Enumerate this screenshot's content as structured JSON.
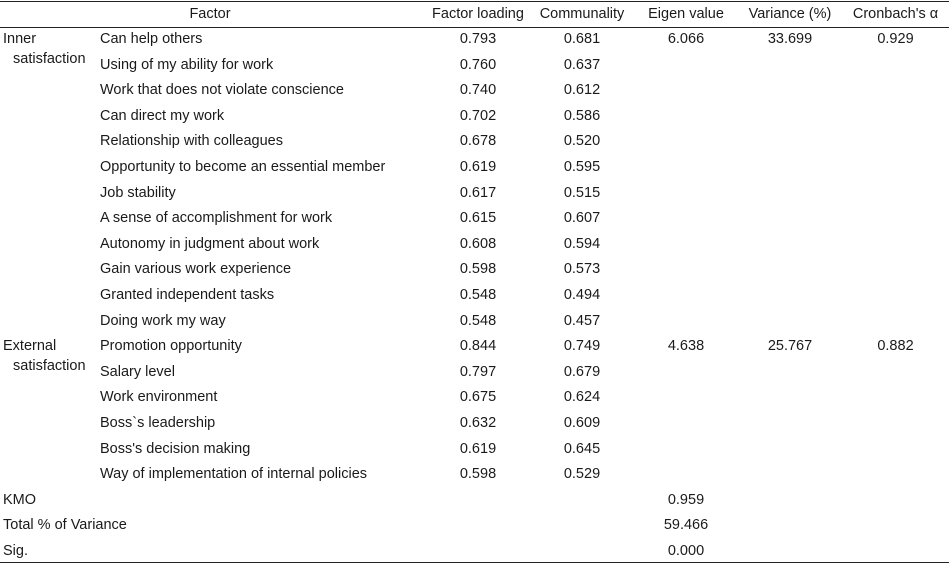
{
  "header": {
    "factor": "Factor",
    "loading": "Factor loading",
    "communality": "Communality",
    "eigen": "Eigen value",
    "variance": "Variance (%)",
    "alpha": "Cronbach's α"
  },
  "groups": [
    {
      "label_line1": "Inner",
      "label_line2": "satisfaction",
      "eigen": "6.066",
      "variance": "33.699",
      "alpha": "0.929",
      "items": [
        {
          "name": "Can help others",
          "loading": "0.793",
          "communality": "0.681"
        },
        {
          "name": "Using of my ability for work",
          "loading": "0.760",
          "communality": "0.637"
        },
        {
          "name": "Work that does not violate conscience",
          "loading": "0.740",
          "communality": "0.612"
        },
        {
          "name": "Can direct my work",
          "loading": "0.702",
          "communality": "0.586"
        },
        {
          "name": "Relationship with colleagues",
          "loading": "0.678",
          "communality": "0.520"
        },
        {
          "name": "Opportunity to become an essential member",
          "loading": "0.619",
          "communality": "0.595"
        },
        {
          "name": "Job stability",
          "loading": "0.617",
          "communality": "0.515"
        },
        {
          "name": "A sense of accomplishment for work",
          "loading": "0.615",
          "communality": "0.607"
        },
        {
          "name": "Autonomy in judgment about work",
          "loading": "0.608",
          "communality": "0.594"
        },
        {
          "name": "Gain various work experience",
          "loading": "0.598",
          "communality": "0.573"
        },
        {
          "name": "Granted independent tasks",
          "loading": "0.548",
          "communality": "0.494"
        },
        {
          "name": "Doing work my way",
          "loading": "0.548",
          "communality": "0.457"
        }
      ]
    },
    {
      "label_line1": "External",
      "label_line2": "satisfaction",
      "eigen": "4.638",
      "variance": "25.767",
      "alpha": "0.882",
      "items": [
        {
          "name": "Promotion opportunity",
          "loading": "0.844",
          "communality": "0.749"
        },
        {
          "name": "Salary level",
          "loading": "0.797",
          "communality": "0.679"
        },
        {
          "name": "Work environment",
          "loading": "0.675",
          "communality": "0.624"
        },
        {
          "name": "Boss`s leadership",
          "loading": "0.632",
          "communality": "0.609"
        },
        {
          "name": "Boss's decision making",
          "loading": "0.619",
          "communality": "0.645"
        },
        {
          "name": "Way of implementation of internal policies",
          "loading": "0.598",
          "communality": "0.529"
        }
      ]
    }
  ],
  "summary": [
    {
      "label": "KMO",
      "value": "0.959"
    },
    {
      "label": "Total % of Variance",
      "value": "59.466"
    },
    {
      "label": "Sig.",
      "value": "0.000"
    }
  ]
}
